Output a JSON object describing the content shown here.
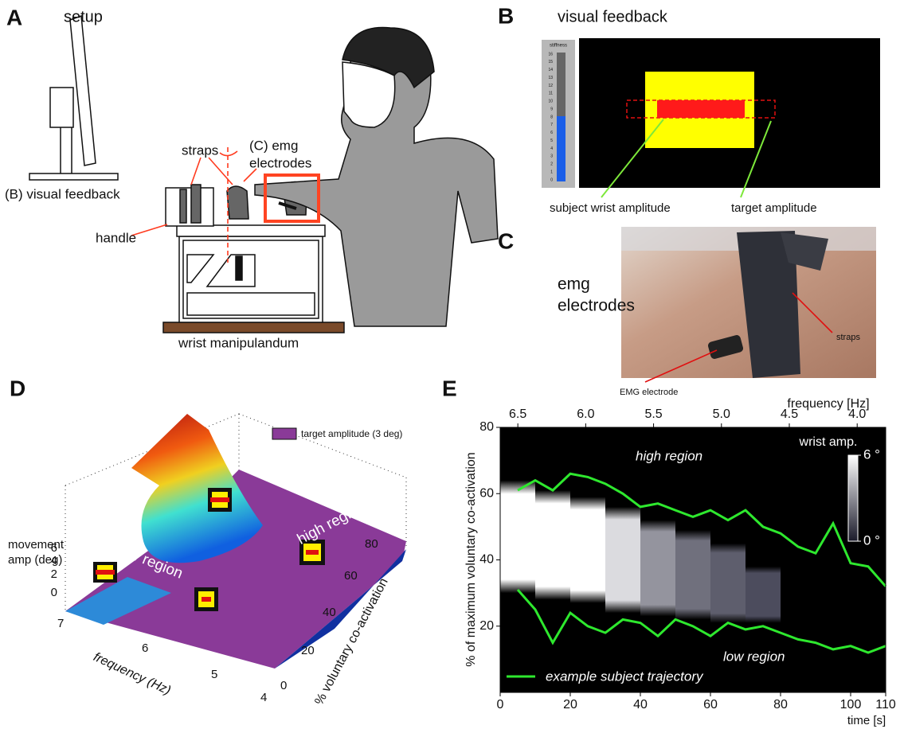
{
  "panel_a": {
    "letter": "A",
    "title": "setup",
    "visual_feedback": "(B) visual feedback",
    "straps": "straps",
    "emg": [
      "(C) emg",
      "electrodes"
    ],
    "handle": "handle",
    "manipulandum": "wrist manipulandum"
  },
  "panel_b": {
    "letter": "B",
    "title": "visual feedback",
    "stiffness_label": "stiffness",
    "stiffness_ticks": [
      0,
      1,
      2,
      3,
      4,
      5,
      6,
      7,
      8,
      9,
      10,
      11,
      12,
      13,
      14,
      15,
      16
    ],
    "subject": "subject wrist amplitude",
    "target": "target amplitude"
  },
  "panel_c": {
    "letter": "C",
    "title": [
      "emg",
      "electrodes"
    ],
    "straps": "straps",
    "electrode": "EMG electrode"
  },
  "panel_d": {
    "letter": "D",
    "legend": "target amplitude (3 deg)",
    "z_label": [
      "movement",
      "amp (deg)"
    ],
    "z_ticks": [
      0,
      2,
      4,
      6
    ],
    "x_label": "frequency (Hz)",
    "x_ticks": [
      7,
      6,
      5,
      4
    ],
    "y_label": "% voluntary co-activation",
    "y_ticks": [
      0,
      20,
      40,
      60,
      80
    ],
    "high": "high region",
    "low": "low region"
  },
  "panel_e": {
    "letter": "E",
    "type": "heatmap",
    "x_label": "time [s]",
    "xlim": [
      0,
      110
    ],
    "xticks": [
      0,
      20,
      40,
      60,
      80,
      100,
      110
    ],
    "y_label": "% of maximum voluntary co-activation",
    "ylim": [
      0,
      80
    ],
    "yticks": [
      20,
      40,
      60,
      80
    ],
    "x2_label": "frequency [Hz]",
    "x2lim": [
      6.63,
      3.79
    ],
    "x2ticks": [
      6.5,
      {
        "value": 6,
        "label": "6.0"
      },
      5.5,
      {
        "value": 5,
        "label": "5.0"
      },
      4.5,
      {
        "value": 4,
        "label": "4.0"
      }
    ],
    "colorbar": {
      "label": "wrist amp.",
      "clim": [
        0,
        6
      ],
      "ticks": [
        {
          "value": 6,
          "label": "6 °"
        },
        {
          "value": 0,
          "label": "0 °"
        }
      ]
    },
    "high": "high region",
    "low": "low region",
    "blocks": {
      "t_start": [
        0,
        10,
        20,
        30,
        40,
        50,
        60,
        70
      ],
      "t_end": [
        10,
        20,
        30,
        40,
        50,
        60,
        70,
        80
      ],
      "lower": [
        30,
        28,
        27,
        24,
        23,
        22,
        21,
        21
      ],
      "upper": [
        64,
        61,
        59,
        56,
        52,
        49,
        45,
        38
      ],
      "amp": [
        6,
        6,
        6,
        5,
        3,
        2,
        1.5,
        1
      ]
    },
    "trajectory": {
      "name": "example subject trajectory",
      "color": "#2ee82e",
      "x": [
        5,
        10,
        15,
        20,
        25,
        30,
        35,
        40,
        45,
        50,
        55,
        60,
        65,
        70,
        75,
        80,
        85,
        90,
        95,
        100,
        105,
        110
      ],
      "upper": [
        61,
        64,
        61,
        66,
        65,
        63,
        60,
        56,
        57,
        55,
        53,
        55,
        52,
        55,
        50,
        48,
        44,
        42,
        51,
        39,
        38,
        32
      ],
      "lower": [
        31,
        25,
        15,
        24,
        20,
        18,
        22,
        21,
        17,
        22,
        20,
        17,
        21,
        19,
        20,
        18,
        16,
        15,
        13,
        14,
        12,
        14
      ]
    }
  }
}
